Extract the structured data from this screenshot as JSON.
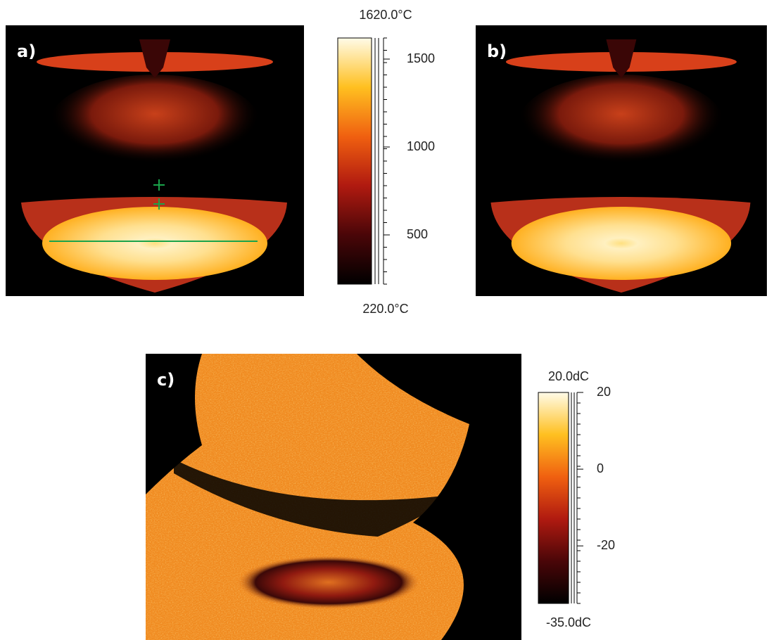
{
  "panels": [
    {
      "label": "a)"
    },
    {
      "label": "b)"
    },
    {
      "label": "c)"
    }
  ],
  "colorbars": [
    {
      "max": {
        "value": 1620,
        "label": "1620.0°C"
      },
      "min": {
        "value": 220,
        "label": "220.0°C"
      },
      "ticks": [
        500,
        1000,
        1500
      ]
    },
    {
      "max": {
        "value": 20,
        "label": "20.0dC"
      },
      "min": {
        "value": -35,
        "label": "-35.0dC"
      },
      "ticks": [
        20,
        0,
        -20
      ]
    }
  ]
}
